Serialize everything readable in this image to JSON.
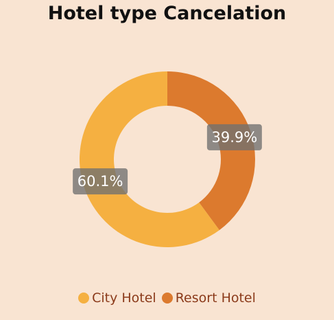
{
  "chart_data": {
    "type": "pie",
    "variant": "donut",
    "title": "Hotel type Cancelation",
    "categories": [
      "City Hotel",
      "Resort Hotel"
    ],
    "values": [
      60.1,
      39.9
    ],
    "labels": [
      "60.1%",
      "39.9%"
    ],
    "colors": [
      "#f5b041",
      "#dc7a2e"
    ],
    "legend_position": "bottom",
    "legend_text_color": "#8b3a1a"
  }
}
